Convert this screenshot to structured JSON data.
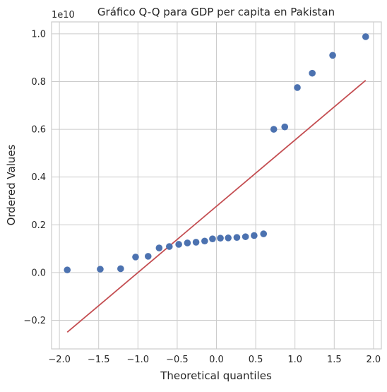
{
  "chart_data": {
    "type": "scatter",
    "title": "Gráfico Q-Q para GDP per capita en Pakistan",
    "xlabel": "Theoretical quantiles",
    "ylabel": "Ordered Values",
    "y_offset_label": "1e10",
    "xlim": [
      -2.1,
      2.1
    ],
    "ylim": [
      -0.32,
      1.05
    ],
    "grid": true,
    "x_ticks": [
      -2.0,
      -1.5,
      -1.0,
      -0.5,
      0.0,
      0.5,
      1.0,
      1.5,
      2.0
    ],
    "x_tick_labels": [
      "−2.0",
      "−1.5",
      "−1.0",
      "−0.5",
      "0.0",
      "0.5",
      "1.0",
      "1.5",
      "2.0"
    ],
    "y_ticks": [
      -0.2,
      0.0,
      0.2,
      0.4,
      0.6,
      0.8,
      1.0
    ],
    "y_tick_labels": [
      "−0.2",
      "0.0",
      "0.2",
      "0.4",
      "0.6",
      "0.8",
      "1.0"
    ],
    "points": {
      "x": [
        -1.9,
        -1.48,
        -1.22,
        -1.03,
        -0.87,
        -0.73,
        -0.6,
        -0.48,
        -0.37,
        -0.26,
        -0.15,
        -0.05,
        0.05,
        0.15,
        0.26,
        0.37,
        0.48,
        0.6,
        0.73,
        0.87,
        1.03,
        1.22,
        1.48,
        1.9
      ],
      "y": [
        0.011,
        0.014,
        0.016,
        0.065,
        0.068,
        0.103,
        0.109,
        0.118,
        0.124,
        0.127,
        0.132,
        0.141,
        0.144,
        0.145,
        0.147,
        0.15,
        0.155,
        0.162,
        0.6,
        0.61,
        0.775,
        0.835,
        0.91,
        0.988
      ]
    },
    "fit_line": {
      "x": [
        -1.9,
        1.9
      ],
      "y": [
        -0.25,
        0.805
      ]
    },
    "colors": {
      "points": "#4c72b0",
      "line": "#c44e52",
      "grid": "#cccccc",
      "spine": "#cccccc"
    }
  }
}
